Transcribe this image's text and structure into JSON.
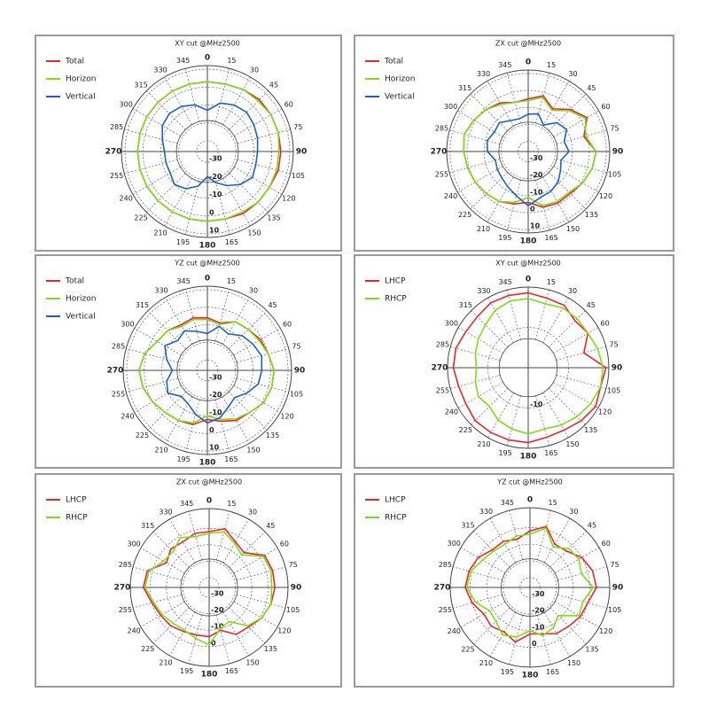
{
  "chart_data": [
    {
      "type": "polar",
      "title": "XY cut @MHz2500",
      "legend": "upper left",
      "grid": true,
      "theta": [
        0,
        15,
        30,
        45,
        60,
        75,
        90,
        105,
        120,
        135,
        150,
        165,
        180,
        195,
        210,
        225,
        240,
        255,
        270,
        285,
        300,
        315,
        330,
        345
      ],
      "rlim": [
        -36,
        12
      ],
      "rticks": [
        -30,
        -20,
        -10,
        0,
        10
      ],
      "series": [
        {
          "name": "Total",
          "color": "#e8262b",
          "values": [
            3,
            3,
            4,
            5,
            5,
            5,
            5,
            5,
            4,
            4,
            4,
            3,
            3,
            3,
            3,
            3,
            3,
            3,
            3,
            3,
            3,
            3,
            3,
            3
          ]
        },
        {
          "name": "Horizon",
          "color": "#7ddc1f",
          "values": [
            3,
            3,
            4,
            4,
            5,
            5,
            4,
            4,
            4,
            4,
            3,
            3,
            3,
            3,
            3,
            3,
            3,
            3,
            3,
            3,
            3,
            3,
            3,
            3
          ]
        },
        {
          "name": "Vertical",
          "color": "#1f5fc4",
          "values": [
            -13,
            -8,
            -6,
            -5,
            -6,
            -7,
            -8,
            -8,
            -7,
            -10,
            -14,
            -18,
            -22,
            -16,
            -12,
            -10,
            -12,
            -12,
            -12,
            -10,
            -7,
            -6,
            -7,
            -9
          ]
        }
      ]
    },
    {
      "type": "polar",
      "title": "ZX cut @MHz2500",
      "legend": "upper left",
      "grid": true,
      "theta": [
        0,
        15,
        30,
        45,
        60,
        75,
        90,
        105,
        120,
        135,
        150,
        165,
        180,
        195,
        210,
        225,
        240,
        255,
        270,
        285,
        300,
        315,
        330,
        345
      ],
      "rlim": [
        -36,
        12
      ],
      "rticks": [
        -30,
        -20,
        -10,
        0,
        10
      ],
      "series": [
        {
          "name": "Total",
          "color": "#e8262b",
          "values": [
            -5,
            -2,
            -7,
            -1,
            4,
            -2,
            4,
            3,
            1,
            -1,
            -1,
            -2,
            -6,
            -4,
            -2,
            -1,
            0,
            1,
            2,
            3,
            1,
            -1,
            -3,
            -6
          ]
        },
        {
          "name": "Horizon",
          "color": "#7ddc1f",
          "values": [
            -6,
            -3,
            -8,
            -2,
            3,
            -1,
            4,
            3,
            1,
            -2,
            -2,
            -3,
            -9,
            -5,
            -2,
            -1,
            0,
            1,
            2,
            3,
            1,
            -1,
            -4,
            -6
          ]
        },
        {
          "name": "Vertical",
          "color": "#1f5fc4",
          "values": [
            -14,
            -13,
            -18,
            -12,
            -10,
            -14,
            -12,
            -16,
            -14,
            -11,
            -9,
            -8,
            -4,
            -9,
            -12,
            -14,
            -15,
            -16,
            -12,
            -11,
            -13,
            -12,
            -15,
            -16
          ]
        }
      ]
    },
    {
      "type": "polar",
      "title": "YZ cut @MHz2500",
      "legend": "upper left",
      "grid": true,
      "theta": [
        0,
        15,
        30,
        45,
        60,
        75,
        90,
        105,
        120,
        135,
        150,
        165,
        180,
        195,
        210,
        225,
        240,
        255,
        270,
        285,
        300,
        315,
        330,
        345
      ],
      "rlim": [
        -36,
        12
      ],
      "rticks": [
        -30,
        -20,
        -10,
        0,
        10
      ],
      "series": [
        {
          "name": "Total",
          "color": "#e8262b",
          "values": [
            -6,
            -8,
            -4,
            -3,
            -1,
            0,
            2,
            2,
            1,
            -2,
            -3,
            -6,
            -8,
            -4,
            -3,
            -2,
            0,
            2,
            3,
            1,
            -3,
            -4,
            -6,
            -5
          ]
        },
        {
          "name": "Horizon",
          "color": "#7ddc1f",
          "values": [
            -7,
            -9,
            -4,
            -3,
            -2,
            0,
            2,
            2,
            1,
            -2,
            -4,
            -7,
            -10,
            -5,
            -3,
            -2,
            0,
            2,
            3,
            1,
            -3,
            -4,
            -7,
            -6
          ]
        },
        {
          "name": "Vertical",
          "color": "#1f5fc4",
          "values": [
            -15,
            -10,
            -12,
            -8,
            -6,
            -4,
            -5,
            -6,
            -10,
            -14,
            -12,
            -8,
            -6,
            -10,
            -14,
            -15,
            -10,
            -12,
            -16,
            -12,
            -8,
            -12,
            -10,
            -13
          ]
        }
      ]
    },
    {
      "type": "polar",
      "title": "XY cut @MHz2500",
      "legend": "upper left",
      "grid": true,
      "theta": [
        0,
        15,
        30,
        45,
        60,
        75,
        90,
        105,
        120,
        135,
        150,
        165,
        180,
        195,
        210,
        225,
        240,
        255,
        270,
        285,
        300,
        315,
        330,
        345
      ],
      "rlim": [
        -24,
        4
      ],
      "rticks": [
        -10
      ],
      "series": [
        {
          "name": "LHCP",
          "color": "#e8262b",
          "values": [
            2,
            1,
            1,
            -1,
            0,
            -4,
            3,
            2,
            3,
            2,
            1,
            1,
            2,
            2,
            2,
            2,
            1,
            1,
            2,
            2,
            1,
            1,
            2,
            2
          ]
        },
        {
          "name": "RHCP",
          "color": "#7ddc1f",
          "values": [
            0,
            -1,
            0,
            0,
            0,
            1,
            2,
            2,
            1,
            0,
            -1,
            -2,
            -1,
            -2,
            -3,
            -5,
            -4,
            -5,
            -6,
            -5,
            -4,
            -3,
            -1,
            0
          ]
        }
      ]
    },
    {
      "type": "polar",
      "title": "ZX cut @MHz2500",
      "legend": "upper left",
      "grid": true,
      "theta": [
        0,
        15,
        30,
        45,
        60,
        75,
        90,
        105,
        120,
        135,
        150,
        165,
        180,
        195,
        210,
        225,
        240,
        255,
        270,
        285,
        300,
        315,
        330,
        345
      ],
      "rlim": [
        -36,
        12
      ],
      "rticks": [
        -30,
        -20,
        -10,
        0
      ],
      "series": [
        {
          "name": "LHCP",
          "color": "#e8262b",
          "values": [
            -2,
            1,
            -4,
            -6,
            3,
            4,
            4,
            3,
            1,
            -2,
            -3,
            -9,
            -6,
            -6,
            -5,
            -3,
            -2,
            0,
            4,
            3,
            -6,
            -3,
            -4,
            -2
          ]
        },
        {
          "name": "RHCP",
          "color": "#7ddc1f",
          "values": [
            -3,
            -1,
            -5,
            -8,
            2,
            3,
            2,
            3,
            1,
            -3,
            -12,
            -10,
            -1,
            -4,
            -6,
            -5,
            -3,
            -1,
            3,
            2,
            -4,
            -5,
            -1,
            -4
          ]
        }
      ]
    },
    {
      "type": "polar",
      "title": "YZ cut @MHz2500",
      "legend": "upper left",
      "grid": true,
      "theta": [
        0,
        15,
        30,
        45,
        60,
        75,
        90,
        105,
        120,
        135,
        150,
        165,
        180,
        195,
        210,
        225,
        240,
        255,
        270,
        285,
        300,
        315,
        330,
        345
      ],
      "rlim": [
        -36,
        12
      ],
      "rticks": [
        -30,
        -20,
        -10,
        0
      ],
      "series": [
        {
          "name": "LHCP",
          "color": "#e8262b",
          "values": [
            -2,
            2,
            -6,
            -5,
            0,
            3,
            4,
            0,
            -1,
            -3,
            -4,
            -7,
            -8,
            -2,
            -5,
            -3,
            -4,
            0,
            3,
            2,
            0,
            -4,
            -4,
            -6
          ]
        },
        {
          "name": "RHCP",
          "color": "#7ddc1f",
          "values": [
            -4,
            1,
            -8,
            -3,
            -2,
            -4,
            2,
            -3,
            -2,
            -12,
            -8,
            -6,
            -10,
            -5,
            -3,
            -7,
            -8,
            -2,
            2,
            1,
            -3,
            -5,
            -6,
            -4
          ]
        }
      ]
    }
  ]
}
